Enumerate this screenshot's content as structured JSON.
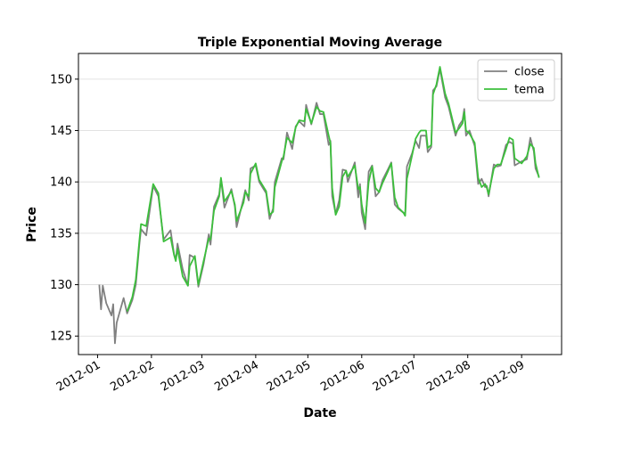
{
  "chart_data": {
    "type": "line",
    "title": "Triple Exponential Moving Average",
    "xlabel": "Date",
    "ylabel": "Price",
    "x": [
      "2012-01-02",
      "2012-01-03",
      "2012-01-04",
      "2012-01-06",
      "2012-01-09",
      "2012-01-10",
      "2012-01-11",
      "2012-01-12",
      "2012-01-16",
      "2012-01-18",
      "2012-01-21",
      "2012-01-23",
      "2012-01-25",
      "2012-01-26",
      "2012-01-29",
      "2012-02-02",
      "2012-02-05",
      "2012-02-08",
      "2012-02-12",
      "2012-02-14",
      "2012-02-15",
      "2012-02-16",
      "2012-02-19",
      "2012-02-22",
      "2012-02-23",
      "2012-02-26",
      "2012-02-28",
      "2012-03-02",
      "2012-03-05",
      "2012-03-06",
      "2012-03-08",
      "2012-03-11",
      "2012-03-12",
      "2012-03-14",
      "2012-03-18",
      "2012-03-20",
      "2012-03-21",
      "2012-03-25",
      "2012-03-26",
      "2012-03-28",
      "2012-03-29",
      "2012-04-01",
      "2012-04-03",
      "2012-04-07",
      "2012-04-09",
      "2012-04-11",
      "2012-04-12",
      "2012-04-16",
      "2012-04-17",
      "2012-04-19",
      "2012-04-22",
      "2012-04-24",
      "2012-04-26",
      "2012-04-29",
      "2012-04-30",
      "2012-05-03",
      "2012-05-06",
      "2012-05-08",
      "2012-05-10",
      "2012-05-13",
      "2012-05-14",
      "2012-05-15",
      "2012-05-17",
      "2012-05-19",
      "2012-05-21",
      "2012-05-23",
      "2012-05-24",
      "2012-05-28",
      "2012-05-30",
      "2012-05-31",
      "2012-06-01",
      "2012-06-03",
      "2012-06-05",
      "2012-06-07",
      "2012-06-09",
      "2012-06-11",
      "2012-06-13",
      "2012-06-16",
      "2012-06-18",
      "2012-06-20",
      "2012-06-22",
      "2012-06-25",
      "2012-06-26",
      "2012-06-27",
      "2012-06-30",
      "2012-07-02",
      "2012-07-04",
      "2012-07-05",
      "2012-07-08",
      "2012-07-09",
      "2012-07-11",
      "2012-07-12",
      "2012-07-14",
      "2012-07-16",
      "2012-07-19",
      "2012-07-21",
      "2012-07-25",
      "2012-07-27",
      "2012-07-29",
      "2012-07-30",
      "2012-07-31",
      "2012-08-02",
      "2012-08-05",
      "2012-08-07",
      "2012-08-09",
      "2012-08-11",
      "2012-08-12",
      "2012-08-13",
      "2012-08-16",
      "2012-08-18",
      "2012-08-20",
      "2012-08-23",
      "2012-08-25",
      "2012-08-27",
      "2012-08-28",
      "2012-09-01",
      "2012-09-04",
      "2012-09-06",
      "2012-09-08",
      "2012-09-09",
      "2012-09-11"
    ],
    "series": [
      {
        "name": "close",
        "color": "#808080",
        "values": [
          130.0,
          127.6,
          129.9,
          128.2,
          127.0,
          128.1,
          124.3,
          126.3,
          128.7,
          127.2,
          128.5,
          130.0,
          133.8,
          135.4,
          134.8,
          139.6,
          138.6,
          134.4,
          135.3,
          133.0,
          132.4,
          134.0,
          131.5,
          129.9,
          132.9,
          132.6,
          129.8,
          132.0,
          134.9,
          133.9,
          137.6,
          138.8,
          140.3,
          137.5,
          139.3,
          137.6,
          135.6,
          138.4,
          139.2,
          138.2,
          141.3,
          141.6,
          140.0,
          138.9,
          136.4,
          137.4,
          140.0,
          142.3,
          142.2,
          144.8,
          143.2,
          145.4,
          145.9,
          145.4,
          147.5,
          145.6,
          147.7,
          146.6,
          146.6,
          143.6,
          144.0,
          138.6,
          136.9,
          138.2,
          141.2,
          141.1,
          140.0,
          141.9,
          138.5,
          139.8,
          137.0,
          135.4,
          141.0,
          141.6,
          138.6,
          139.0,
          140.2,
          141.2,
          141.9,
          137.8,
          137.4,
          137.0,
          136.9,
          141.5,
          142.8,
          144.0,
          143.3,
          144.5,
          144.5,
          142.9,
          143.4,
          148.9,
          149.3,
          151.0,
          148.2,
          147.3,
          144.5,
          145.5,
          146.0,
          147.1,
          144.5,
          145.0,
          143.5,
          139.8,
          140.3,
          139.5,
          139.6,
          138.6,
          141.7,
          141.5,
          141.6,
          143.6,
          143.9,
          143.7,
          141.6,
          142.0,
          142.2,
          144.3,
          143.0,
          141.3,
          140.5
        ]
      },
      {
        "name": "tema",
        "color": "#3cbf3c",
        "values": [
          null,
          null,
          null,
          null,
          null,
          null,
          null,
          null,
          null,
          127.4,
          128.8,
          130.5,
          134.2,
          135.9,
          135.7,
          139.8,
          138.9,
          134.2,
          134.6,
          132.9,
          132.3,
          133.5,
          130.8,
          129.9,
          131.8,
          132.8,
          130.0,
          132.3,
          134.5,
          134.4,
          137.2,
          138.6,
          140.4,
          138.1,
          139.1,
          137.8,
          136.2,
          138.0,
          139.0,
          138.6,
          140.8,
          141.8,
          140.2,
          139.1,
          136.8,
          137.1,
          139.5,
          142.0,
          142.5,
          144.3,
          143.8,
          145.3,
          146.0,
          145.9,
          147.1,
          145.7,
          147.3,
          146.9,
          146.8,
          144.5,
          143.8,
          139.4,
          136.8,
          137.6,
          140.5,
          141.1,
          140.5,
          141.6,
          139.3,
          139.5,
          137.8,
          136.0,
          140.0,
          141.5,
          139.4,
          139.0,
          139.9,
          141.0,
          141.8,
          138.5,
          137.5,
          137.0,
          136.7,
          140.3,
          142.6,
          144.2,
          144.8,
          145.0,
          145.0,
          143.3,
          143.6,
          148.5,
          149.5,
          151.2,
          148.6,
          147.6,
          144.8,
          145.2,
          145.7,
          146.8,
          145.0,
          144.7,
          143.8,
          140.4,
          139.5,
          139.8,
          139.4,
          138.8,
          141.3,
          141.7,
          141.7,
          143.2,
          144.3,
          144.1,
          142.3,
          141.8,
          142.5,
          143.7,
          143.3,
          141.8,
          140.4
        ]
      }
    ],
    "xlim": [
      "2011-12-21",
      "2012-09-24"
    ],
    "xticks": [
      {
        "value": "2012-01-01",
        "label": "2012-01"
      },
      {
        "value": "2012-02-01",
        "label": "2012-02"
      },
      {
        "value": "2012-03-01",
        "label": "2012-03"
      },
      {
        "value": "2012-04-01",
        "label": "2012-04"
      },
      {
        "value": "2012-05-01",
        "label": "2012-05"
      },
      {
        "value": "2012-06-01",
        "label": "2012-06"
      },
      {
        "value": "2012-07-01",
        "label": "2012-07"
      },
      {
        "value": "2012-08-01",
        "label": "2012-08"
      },
      {
        "value": "2012-09-01",
        "label": "2012-09"
      }
    ],
    "ylim": [
      123.2,
      152.5
    ],
    "yticks": [
      125,
      130,
      135,
      140,
      145,
      150
    ],
    "grid": "y",
    "legend": "upper right"
  }
}
